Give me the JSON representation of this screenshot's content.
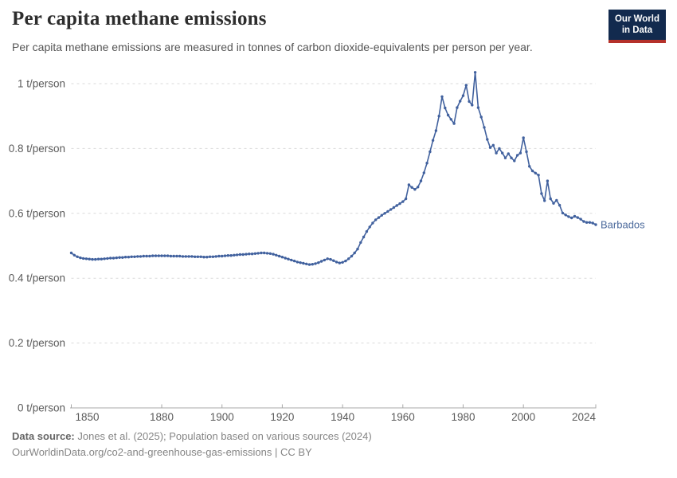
{
  "header": {
    "title": "Per capita methane emissions",
    "subtitle": "Per capita methane emissions are measured in tonnes of carbon dioxide-equivalents per person per year.",
    "logo": {
      "line1": "Our World",
      "line2": "in Data"
    }
  },
  "colors": {
    "line": "#41619e",
    "entity_label": "#4c6a9c",
    "grid": "#d9d9d9",
    "axis": "#a8a8a8",
    "tick_label": "#5b5b5b",
    "logo_bg": "#122a4e",
    "logo_accent": "#b5312a"
  },
  "chart_data": {
    "type": "line",
    "title": "Per capita methane emissions",
    "xlabel": "",
    "ylabel": "t/person",
    "x_start": 1850,
    "x_end": 2024,
    "x_step": 1,
    "ylim": [
      0,
      1.05
    ],
    "grid": true,
    "legend_position": "end-of-line-label",
    "y_ticks": [
      {
        "value": 0,
        "label": "0 t/person"
      },
      {
        "value": 0.2,
        "label": "0.2 t/person"
      },
      {
        "value": 0.4,
        "label": "0.4 t/person"
      },
      {
        "value": 0.6,
        "label": "0.6 t/person"
      },
      {
        "value": 0.8,
        "label": "0.8 t/person"
      },
      {
        "value": 1,
        "label": "1 t/person"
      }
    ],
    "x_ticks": [
      {
        "year": 1850,
        "label": "1850",
        "label_dx": 20
      },
      {
        "year": 1880,
        "label": "1880",
        "label_dx": 0
      },
      {
        "year": 1900,
        "label": "1900",
        "label_dx": 0
      },
      {
        "year": 1920,
        "label": "1920",
        "label_dx": 0
      },
      {
        "year": 1940,
        "label": "1940",
        "label_dx": 0
      },
      {
        "year": 1960,
        "label": "1960",
        "label_dx": 0
      },
      {
        "year": 1980,
        "label": "1980",
        "label_dx": 0
      },
      {
        "year": 2000,
        "label": "2000",
        "label_dx": 0
      },
      {
        "year": 2024,
        "label": "2024",
        "label_dx": -15
      }
    ],
    "series": [
      {
        "name": "Barbados",
        "color": "#41619e",
        "values": [
          0.478,
          0.471,
          0.466,
          0.463,
          0.461,
          0.46,
          0.459,
          0.458,
          0.458,
          0.459,
          0.459,
          0.46,
          0.461,
          0.462,
          0.462,
          0.463,
          0.464,
          0.464,
          0.465,
          0.465,
          0.466,
          0.466,
          0.467,
          0.467,
          0.468,
          0.468,
          0.468,
          0.469,
          0.469,
          0.469,
          0.469,
          0.469,
          0.469,
          0.468,
          0.468,
          0.468,
          0.468,
          0.467,
          0.467,
          0.467,
          0.467,
          0.466,
          0.466,
          0.466,
          0.465,
          0.465,
          0.466,
          0.466,
          0.467,
          0.468,
          0.468,
          0.469,
          0.47,
          0.47,
          0.471,
          0.472,
          0.473,
          0.473,
          0.474,
          0.475,
          0.475,
          0.476,
          0.477,
          0.478,
          0.478,
          0.477,
          0.476,
          0.474,
          0.471,
          0.468,
          0.465,
          0.462,
          0.459,
          0.456,
          0.453,
          0.45,
          0.448,
          0.446,
          0.444,
          0.442,
          0.443,
          0.445,
          0.448,
          0.452,
          0.456,
          0.46,
          0.458,
          0.454,
          0.45,
          0.447,
          0.449,
          0.453,
          0.46,
          0.468,
          0.478,
          0.49,
          0.51,
          0.527,
          0.544,
          0.558,
          0.57,
          0.58,
          0.587,
          0.594,
          0.6,
          0.606,
          0.612,
          0.618,
          0.624,
          0.63,
          0.636,
          0.645,
          0.688,
          0.68,
          0.674,
          0.681,
          0.7,
          0.725,
          0.755,
          0.79,
          0.825,
          0.855,
          0.9,
          0.96,
          0.925,
          0.903,
          0.89,
          0.877,
          0.926,
          0.946,
          0.963,
          0.995,
          0.945,
          0.934,
          1.035,
          0.926,
          0.897,
          0.865,
          0.828,
          0.803,
          0.81,
          0.786,
          0.8,
          0.786,
          0.771,
          0.784,
          0.771,
          0.762,
          0.779,
          0.786,
          0.833,
          0.79,
          0.745,
          0.731,
          0.724,
          0.718,
          0.661,
          0.639,
          0.7,
          0.645,
          0.631,
          0.64,
          0.625,
          0.601,
          0.595,
          0.59,
          0.586,
          0.591,
          0.587,
          0.582,
          0.575,
          0.572,
          0.572,
          0.57,
          0.565
        ]
      }
    ]
  },
  "footer": {
    "datasource_label": "Data source:",
    "datasource_text": " Jones et al. (2025); Population based on various sources (2024)",
    "note_text": "OurWorldinData.org/co2-and-greenhouse-gas-emissions | CC BY"
  }
}
